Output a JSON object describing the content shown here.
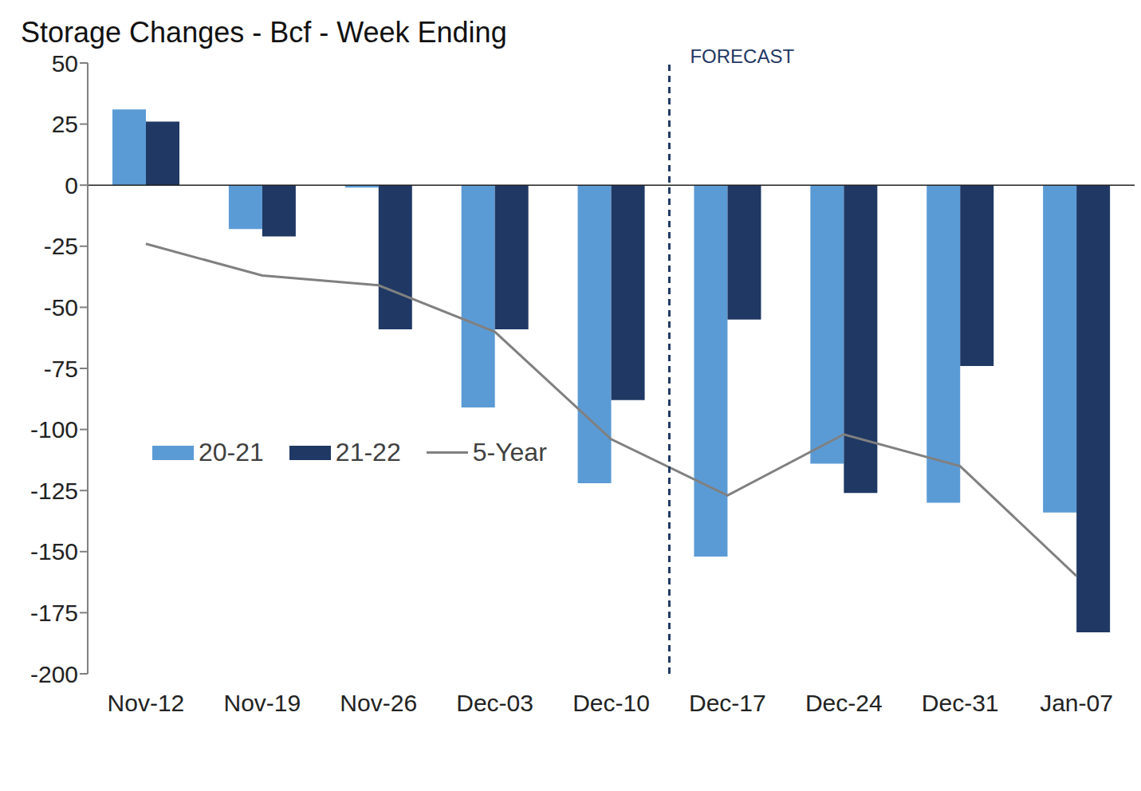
{
  "chart_data": {
    "type": "bar",
    "title": "Storage Changes - Bcf - Week Ending",
    "categories": [
      "Nov-12",
      "Nov-19",
      "Nov-26",
      "Dec-03",
      "Dec-10",
      "Dec-17",
      "Dec-24",
      "Dec-31",
      "Jan-07"
    ],
    "series": [
      {
        "name": "20-21",
        "type": "bar",
        "color": "#5b9bd5",
        "values": [
          31,
          -18,
          -1,
          -91,
          -122,
          -152,
          -114,
          -130,
          -134
        ]
      },
      {
        "name": "21-22",
        "type": "bar",
        "color": "#1f3864",
        "values": [
          26,
          -21,
          -59,
          -59,
          -88,
          -55,
          -126,
          -74,
          -183
        ]
      },
      {
        "name": "5-Year",
        "type": "line",
        "color": "#808080",
        "line_style": "solid",
        "marker": "none",
        "values": [
          -24,
          -37,
          -41,
          -60,
          -104,
          -127,
          -102,
          -115,
          -160
        ]
      }
    ],
    "ylim": [
      -200,
      50
    ],
    "yticks": [
      -200,
      -175,
      -150,
      -125,
      -100,
      -75,
      -50,
      -25,
      0,
      25,
      50
    ],
    "grid": false,
    "legend": "center left",
    "annotations": [
      {
        "text": "FORECAST",
        "after": "Dec-10",
        "line_style": "dashed",
        "color": "#1f3864"
      }
    ]
  }
}
